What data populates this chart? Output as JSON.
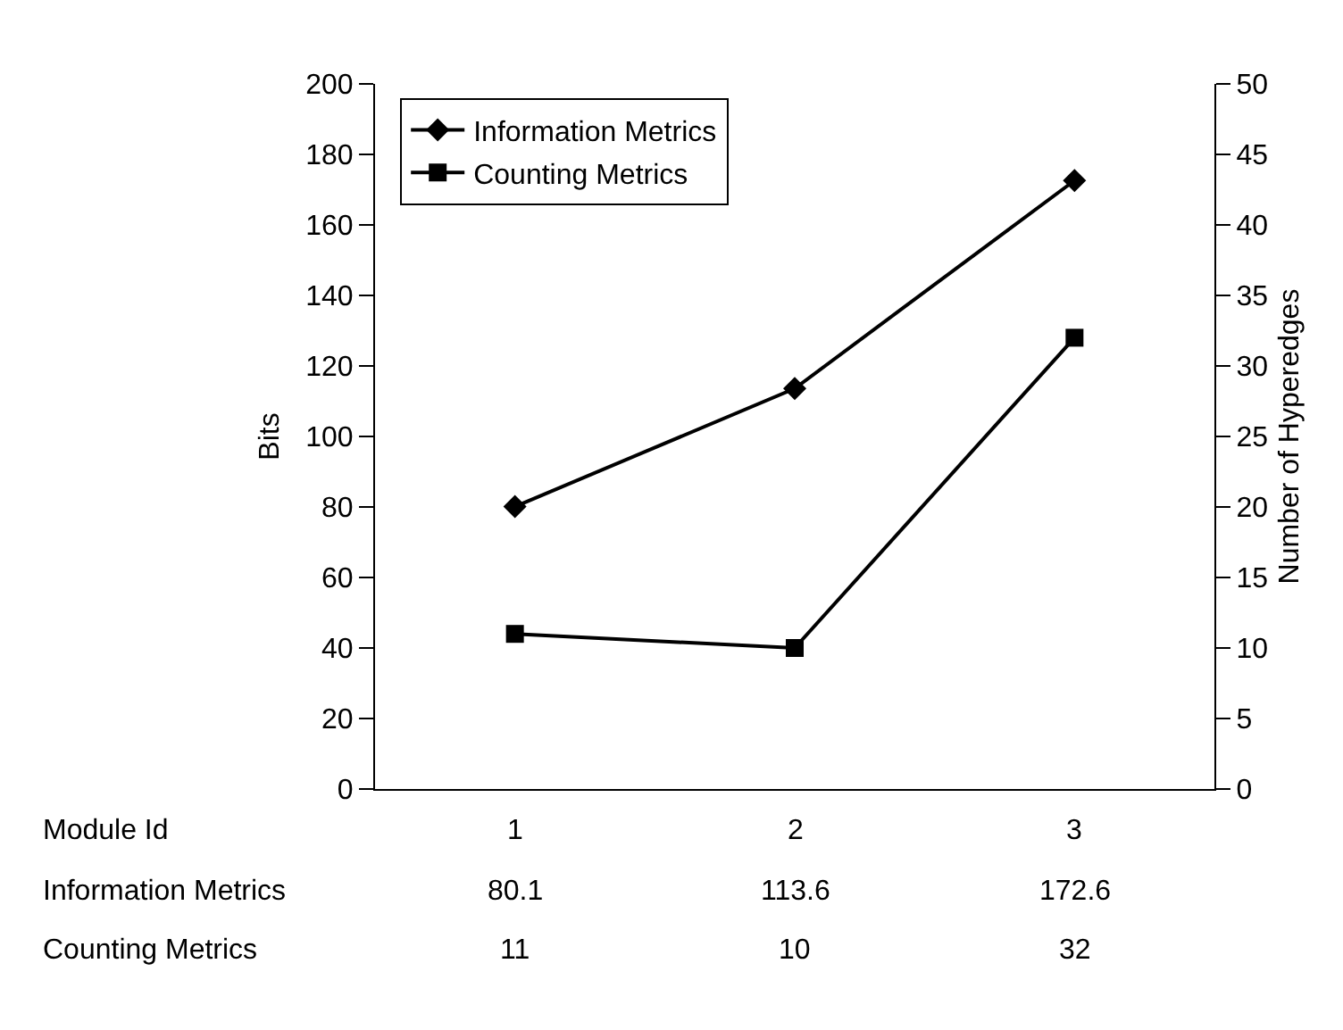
{
  "chart_data": {
    "type": "line",
    "categories": [
      "1",
      "2",
      "3"
    ],
    "xlabel": "Module Id",
    "ylabel": "Bits",
    "y2label": "Number of Hyperedges",
    "series": [
      {
        "name": "Information Metrics",
        "color": "#000000",
        "marker": "diamond",
        "values": [
          80.1,
          113.6,
          172.6
        ]
      },
      {
        "name": "Counting Metrics",
        "color": "#000000",
        "marker": "square",
        "axis": "y2",
        "values": [
          11,
          10,
          32
        ]
      }
    ],
    "ylim": [
      0,
      200
    ],
    "yticks": [
      0,
      20,
      40,
      60,
      80,
      100,
      120,
      140,
      160,
      180,
      200
    ],
    "y2lim": [
      0,
      50
    ],
    "y2ticks": [
      0,
      5,
      10,
      15,
      20,
      25,
      30,
      35,
      40,
      45,
      50
    ],
    "data_labels": true,
    "legend": "top left"
  }
}
